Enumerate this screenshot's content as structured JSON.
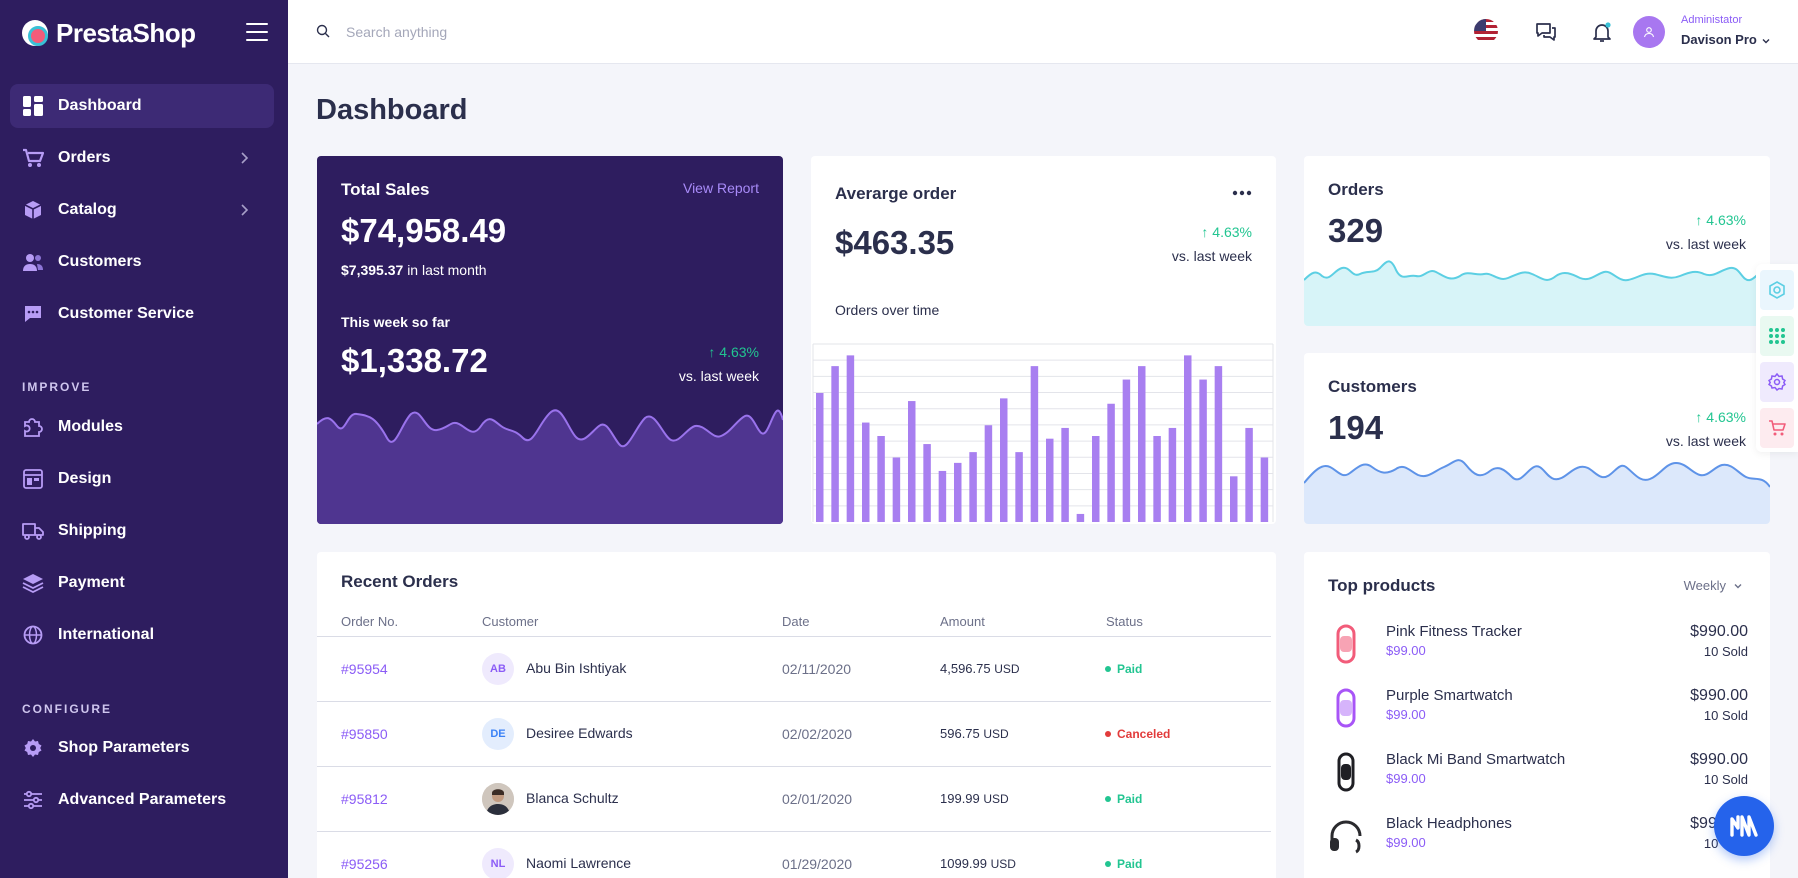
{
  "brand": {
    "name": "PrestaShop"
  },
  "sidebar": {
    "items": [
      {
        "label": "Dashboard",
        "icon": "dashboard-icon",
        "active": true
      },
      {
        "label": "Orders",
        "icon": "cart-icon",
        "has_children": true
      },
      {
        "label": "Catalog",
        "icon": "box-icon",
        "has_children": true
      },
      {
        "label": "Customers",
        "icon": "users-icon"
      },
      {
        "label": "Customer Service",
        "icon": "chat-icon"
      }
    ],
    "improve_title": "IMPROVE",
    "improve_items": [
      {
        "label": "Modules",
        "icon": "puzzle-icon"
      },
      {
        "label": "Design",
        "icon": "layout-icon"
      },
      {
        "label": "Shipping",
        "icon": "truck-icon"
      },
      {
        "label": "Payment",
        "icon": "layers-icon"
      },
      {
        "label": "International",
        "icon": "globe-icon"
      }
    ],
    "configure_title": "CONFIGURE",
    "configure_items": [
      {
        "label": "Shop Parameters",
        "icon": "gear-icon"
      },
      {
        "label": "Advanced Parameters",
        "icon": "sliders-icon"
      }
    ]
  },
  "topbar": {
    "search_placeholder": "Search anything",
    "user_role": "Administator",
    "user_name": "Davison Pro"
  },
  "page_title": "Dashboard",
  "total_sales": {
    "title": "Total Sales",
    "view_report": "View Report",
    "amount": "$74,958.49",
    "last_month_amount": "$7,395.37",
    "last_month_label": "in last month",
    "week_label": "This week so far",
    "week_amount": "$1,338.72",
    "change": "4.63%",
    "change_label": "vs. last week"
  },
  "average_order": {
    "title": "Averarge order",
    "amount": "$463.35",
    "change": "4.63%",
    "change_label": "vs. last week",
    "chart_title": "Orders over time"
  },
  "orders_card": {
    "title": "Orders",
    "value": "329",
    "change": "4.63%",
    "change_label": "vs. last week"
  },
  "customers_card": {
    "title": "Customers",
    "value": "194",
    "change": "4.63%",
    "change_label": "vs. last week"
  },
  "chart_data": {
    "type": "bar",
    "title": "Orders over time",
    "values": [
      48,
      58,
      62,
      37,
      32,
      24,
      45,
      29,
      19,
      22,
      26,
      36,
      46,
      26,
      58,
      31,
      35,
      3,
      32,
      44,
      53,
      58,
      32,
      35,
      62,
      53,
      58,
      17,
      35,
      24
    ]
  },
  "recent_orders": {
    "title": "Recent Orders",
    "columns": [
      "Order No.",
      "Customer",
      "Date",
      "Amount",
      "Status"
    ],
    "rows": [
      {
        "order": "#95954",
        "initials": "AB",
        "customer": "Abu Bin Ishtiyak",
        "date": "02/11/2020",
        "amount": "4,596.75",
        "currency": "USD",
        "status": "Paid",
        "status_color": "#22c591",
        "avatar_bg": "#efeafd",
        "avatar_fg": "#8b5cf6"
      },
      {
        "order": "#95850",
        "initials": "DE",
        "customer": "Desiree Edwards",
        "date": "02/02/2020",
        "amount": "596.75",
        "currency": "USD",
        "status": "Canceled",
        "status_color": "#e23b3b",
        "avatar_bg": "#e3edfd",
        "avatar_fg": "#3b82f6"
      },
      {
        "order": "#95812",
        "initials": "",
        "customer": "Blanca Schultz",
        "date": "02/01/2020",
        "amount": "199.99",
        "currency": "USD",
        "status": "Paid",
        "status_color": "#22c591",
        "avatar_bg": "#5a4a44",
        "avatar_fg": "#ffffff",
        "photo": true
      },
      {
        "order": "#95256",
        "initials": "NL",
        "customer": "Naomi Lawrence",
        "date": "01/29/2020",
        "amount": "1099.99",
        "currency": "USD",
        "status": "Paid",
        "status_color": "#22c591",
        "avatar_bg": "#efeafd",
        "avatar_fg": "#8b5cf6"
      }
    ]
  },
  "top_products": {
    "title": "Top products",
    "period": "Weekly",
    "items": [
      {
        "name": "Pink Fitness Tracker",
        "price": "$99.00",
        "total": "$990.00",
        "sold": "10 Sold",
        "color": "#f25c7a"
      },
      {
        "name": "Purple Smartwatch",
        "price": "$99.00",
        "total": "$990.00",
        "sold": "10 Sold",
        "color": "#a855f7"
      },
      {
        "name": "Black Mi Band Smartwatch",
        "price": "$99.00",
        "total": "$990.00",
        "sold": "10 Sold",
        "color": "#1f1f24"
      },
      {
        "name": "Black Headphones",
        "price": "$99.00",
        "total": "$990.00",
        "sold": "10 Sold",
        "color": "#2a2a2e"
      }
    ]
  },
  "colors": {
    "sidebar": "#2e1d5f",
    "accent": "#8b5cf6",
    "positive": "#22c591",
    "negative": "#e23b3b"
  }
}
